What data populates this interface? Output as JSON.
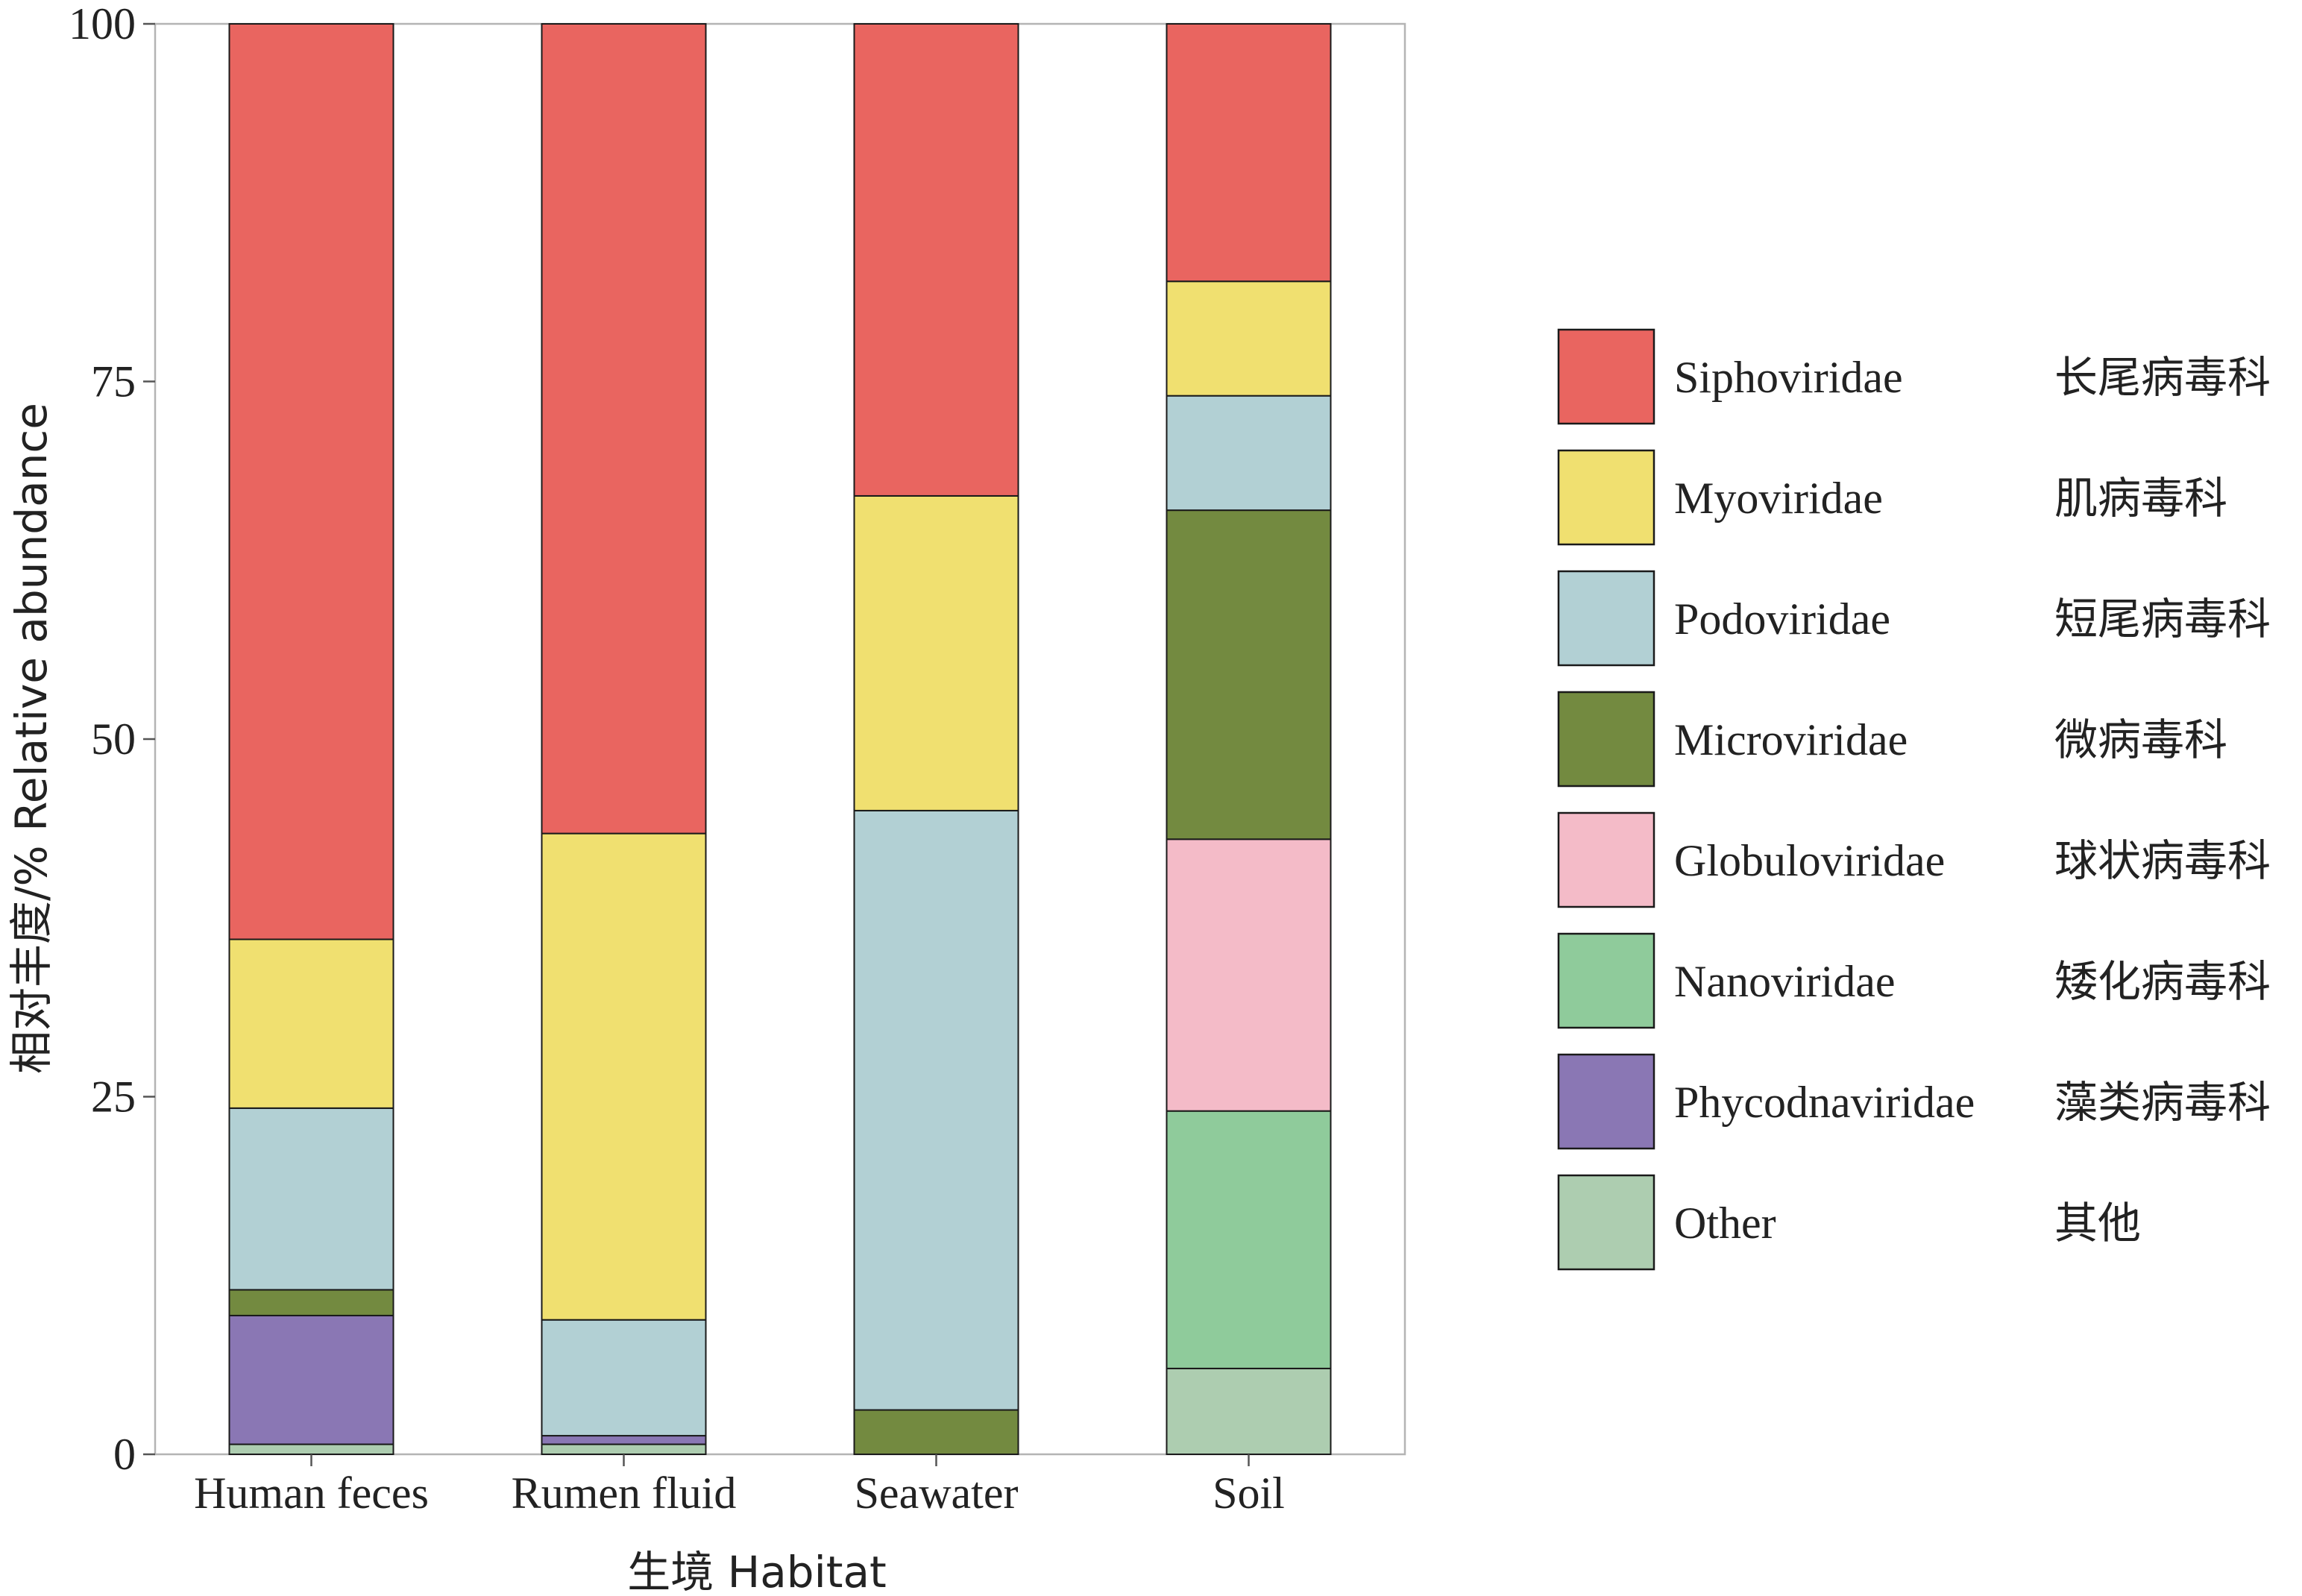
{
  "chart_data": {
    "type": "bar",
    "stacked": true,
    "ylabel": "相对丰度/% Relative abundance",
    "xlabel": "生境 Habitat",
    "ylim": [
      0,
      100
    ],
    "yticks": [
      "0",
      "25",
      "50",
      "75",
      "100"
    ],
    "categories": [
      "Human feces",
      "Rumen fluid",
      "Seawater",
      "Soil"
    ],
    "legend_position": "right",
    "series": [
      {
        "name": "Other",
        "name_cn": "其他",
        "color": "#adcdb0",
        "values": [
          0.7,
          0.7,
          0,
          6
        ]
      },
      {
        "name": "Phycodnaviridae",
        "name_cn": "藻类病毒科",
        "color": "#8a77b4",
        "values": [
          9.0,
          0.6,
          0,
          0
        ]
      },
      {
        "name": "Nanoviridae",
        "name_cn": "矮化病毒科",
        "color": "#8fcb9b",
        "values": [
          0,
          0,
          0,
          18
        ]
      },
      {
        "name": "Globuloviridae",
        "name_cn": "球状病毒科",
        "color": "#f4bbc8",
        "values": [
          0,
          0,
          0,
          19
        ]
      },
      {
        "name": "Microviridae",
        "name_cn": "微病毒科",
        "color": "#738a40",
        "values": [
          1.8,
          0,
          3.1,
          23
        ]
      },
      {
        "name": "Podoviridae",
        "name_cn": "短尾病毒科",
        "color": "#b2d0d4",
        "values": [
          12.7,
          8.1,
          41.9,
          8
        ]
      },
      {
        "name": "Myoviridae",
        "name_cn": "肌病毒科",
        "color": "#f0e070",
        "values": [
          11.8,
          34.0,
          22.0,
          8
        ]
      },
      {
        "name": "Siphoviridae",
        "name_cn": "长尾病毒科",
        "color": "#e96560",
        "values": [
          64.0,
          56.6,
          33.0,
          18
        ]
      }
    ],
    "legend_order": [
      "Siphoviridae",
      "Myoviridae",
      "Podoviridae",
      "Microviridae",
      "Globuloviridae",
      "Nanoviridae",
      "Phycodnaviridae",
      "Other"
    ]
  }
}
